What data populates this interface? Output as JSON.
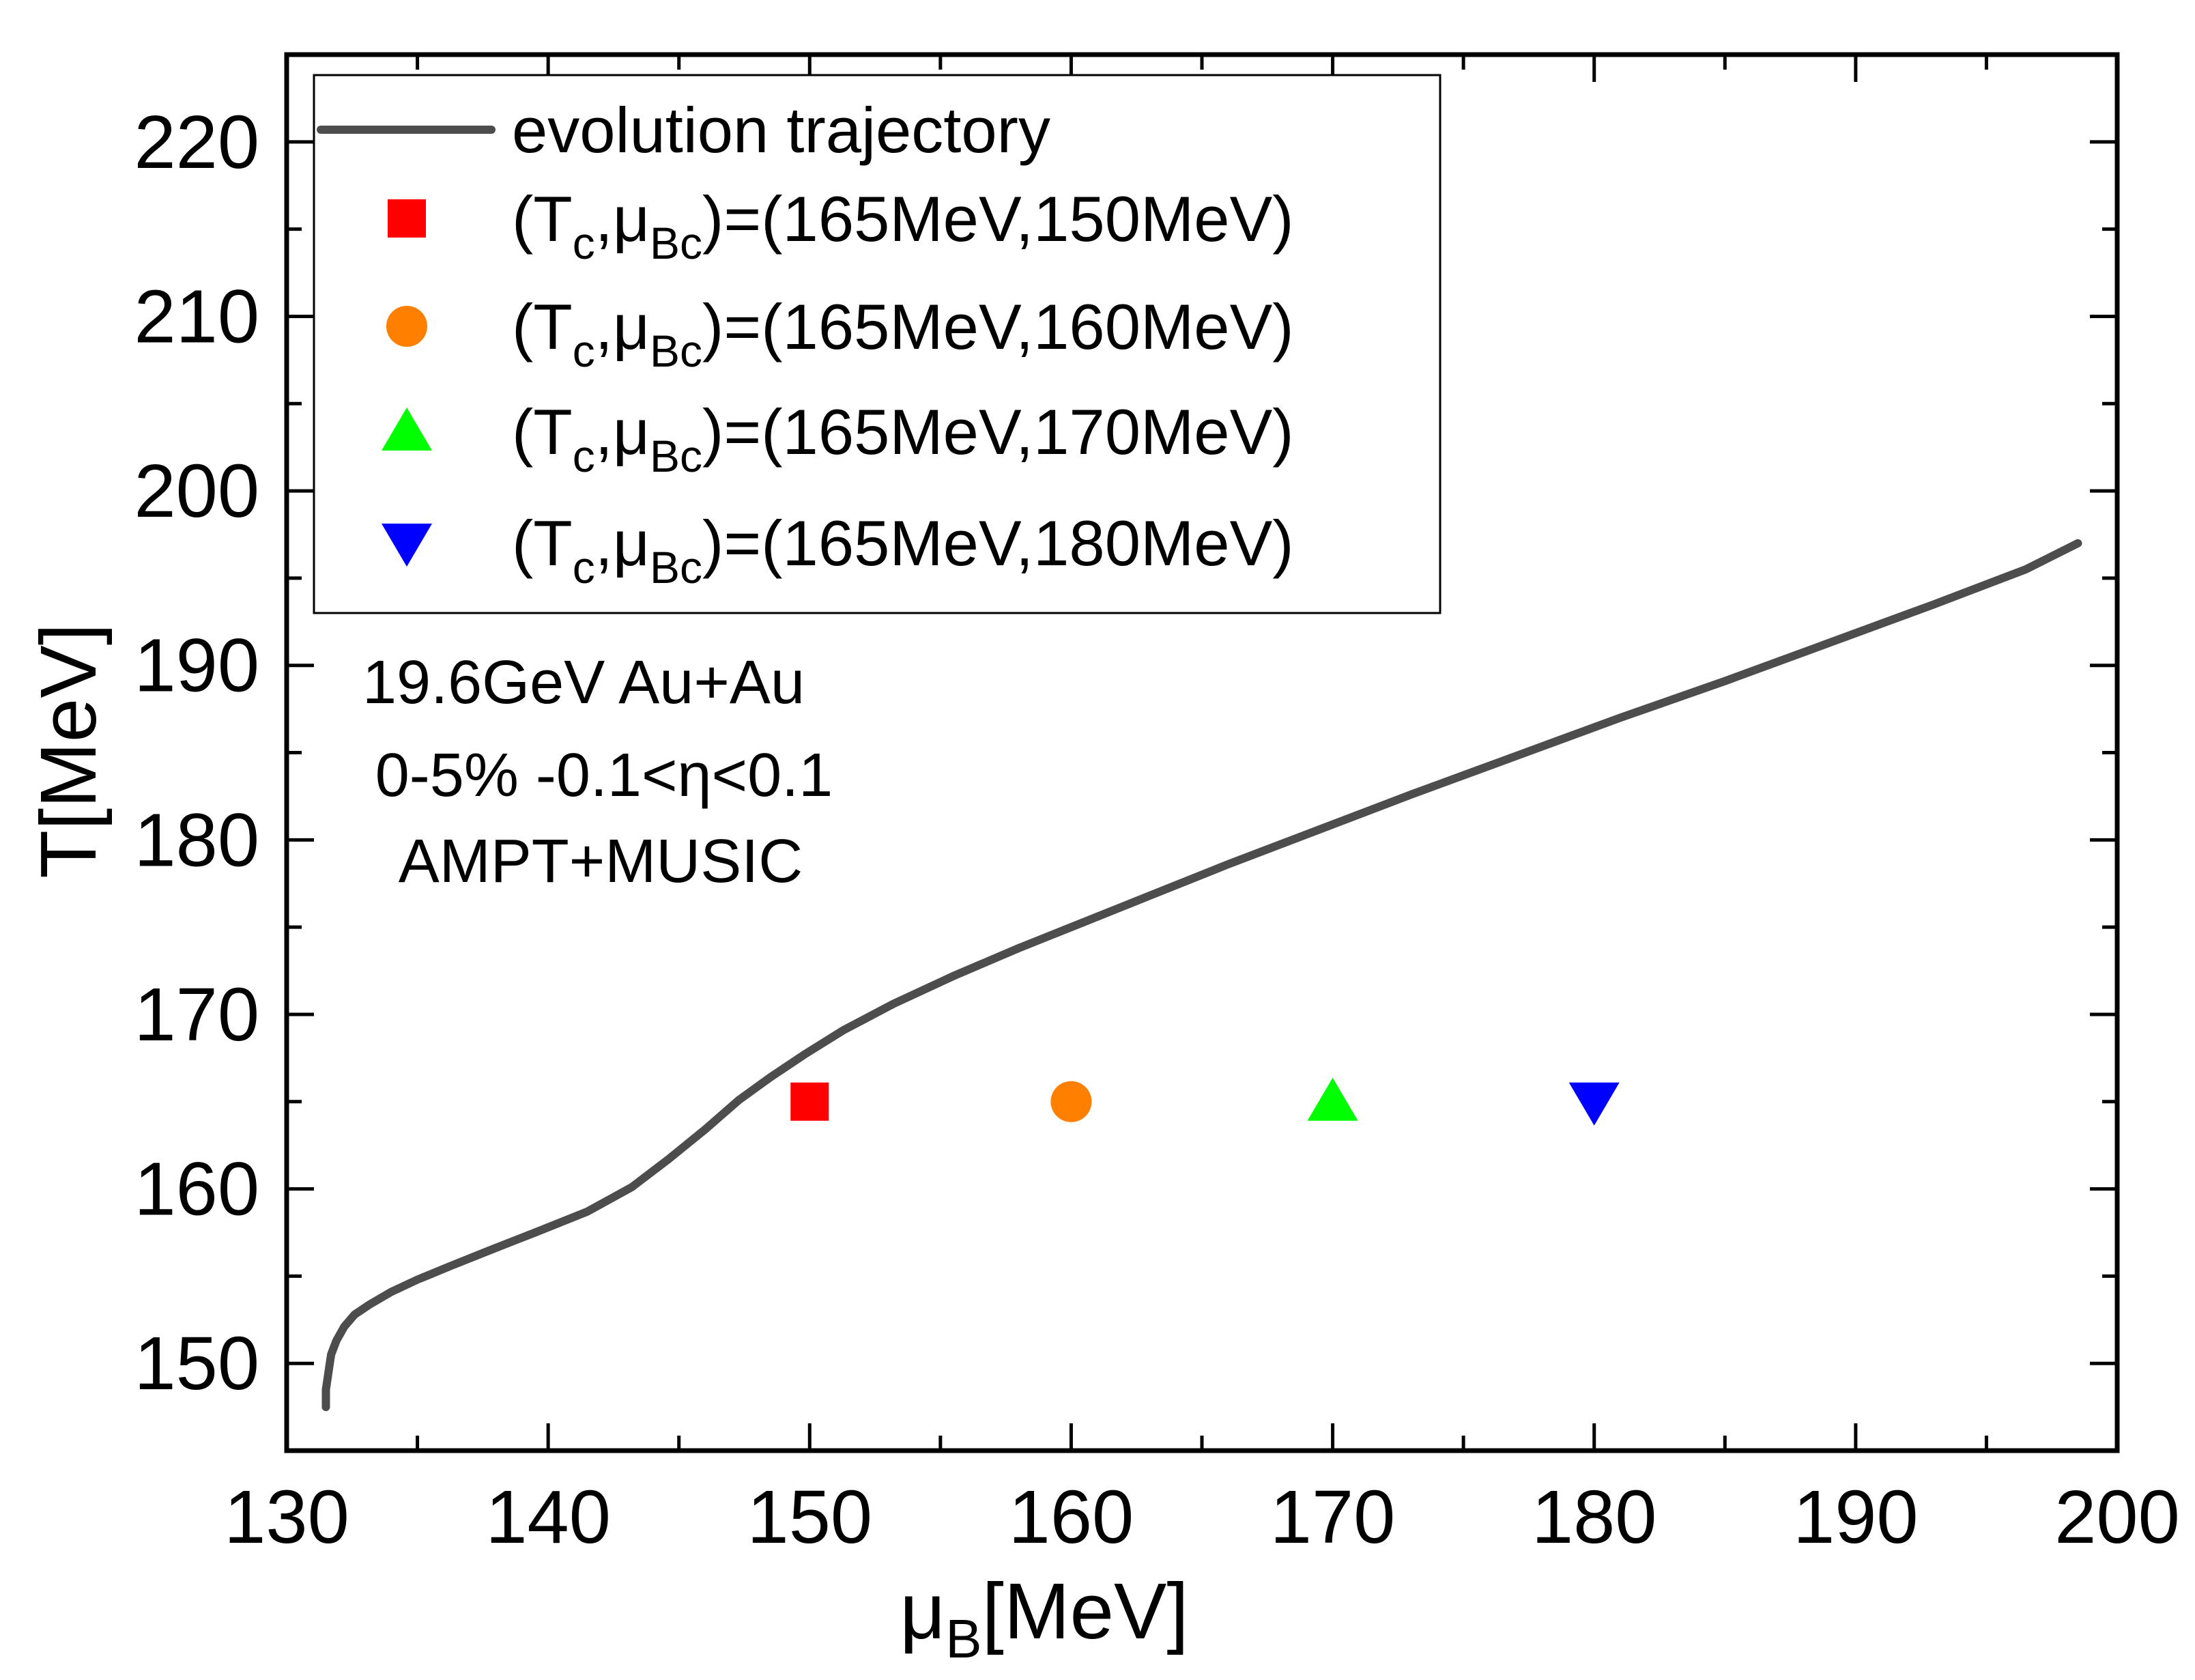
{
  "chart_data": {
    "type": "line",
    "title": "",
    "xlabel_main": "μ",
    "xlabel_sub": "B",
    "xlabel_unit": "[MeV]",
    "ylabel": "T[MeV]",
    "xlim": [
      130,
      200
    ],
    "ylim": [
      145,
      225
    ],
    "x_major_ticks": [
      130,
      140,
      150,
      160,
      170,
      180,
      190,
      200
    ],
    "x_tick_labels": [
      "130",
      "140",
      "150",
      "160",
      "170",
      "180",
      "190",
      "200"
    ],
    "x_minor_ticks": [
      135,
      145,
      155,
      165,
      175,
      185,
      195
    ],
    "y_major_ticks": [
      150,
      160,
      170,
      180,
      190,
      200,
      210,
      220
    ],
    "y_tick_labels": [
      "150",
      "160",
      "170",
      "180",
      "190",
      "200",
      "210",
      "220"
    ],
    "y_minor_ticks": [
      155,
      165,
      175,
      185,
      195,
      205,
      215
    ],
    "grid": false,
    "legend_position": "top-left",
    "series": [
      {
        "name": "evolution trajectory",
        "kind": "line",
        "color": "#4d4d4d",
        "x": [
          131.5,
          131.5,
          131.6,
          131.7,
          131.9,
          132.2,
          132.6,
          133.2,
          134.0,
          135.0,
          136.3,
          137.8,
          139.5,
          141.5,
          143.2,
          144.6,
          146.0,
          147.3,
          148.5,
          149.8,
          151.3,
          153.2,
          155.5,
          158.0,
          160.5,
          163.0,
          166.0,
          169.5,
          173.0,
          177.0,
          181.0,
          185.0,
          189.0,
          193.0,
          196.5,
          198.5
        ],
        "y": [
          147.5,
          148.5,
          149.5,
          150.5,
          151.3,
          152.1,
          152.8,
          153.4,
          154.1,
          154.8,
          155.6,
          156.5,
          157.5,
          158.7,
          160.1,
          161.7,
          163.4,
          165.1,
          166.4,
          167.7,
          169.1,
          170.6,
          172.2,
          173.8,
          175.3,
          176.8,
          178.6,
          180.6,
          182.6,
          184.8,
          187.0,
          189.1,
          191.3,
          193.5,
          195.5,
          197.0
        ]
      },
      {
        "name": "(Tc,μBc)=(165MeV,150MeV)",
        "kind": "marker",
        "marker": "square",
        "color": "#ff0000",
        "x": [
          150
        ],
        "y": [
          165
        ]
      },
      {
        "name": "(Tc,μBc)=(165MeV,160MeV)",
        "kind": "marker",
        "marker": "circle",
        "color": "#ff8000",
        "x": [
          160
        ],
        "y": [
          165
        ]
      },
      {
        "name": "(Tc,μBc)=(165MeV,170MeV)",
        "kind": "marker",
        "marker": "triangle-up",
        "color": "#00ff00",
        "x": [
          170
        ],
        "y": [
          165
        ]
      },
      {
        "name": "(Tc,μBc)=(165MeV,180MeV)",
        "kind": "marker",
        "marker": "triangle-down",
        "color": "#0000ff",
        "x": [
          180
        ],
        "y": [
          165
        ]
      }
    ],
    "legend": [
      {
        "kind": "line",
        "color": "#4d4d4d",
        "text": "evolution trajectory"
      },
      {
        "kind": "marker",
        "marker": "square",
        "color": "#ff0000",
        "pre": "(T",
        "sub1": "c",
        "mid": ",μ",
        "sub2": "Bc",
        "post": ")=(165MeV,150MeV)"
      },
      {
        "kind": "marker",
        "marker": "circle",
        "color": "#ff8000",
        "pre": "(T",
        "sub1": "c",
        "mid": ",μ",
        "sub2": "Bc",
        "post": ")=(165MeV,160MeV)"
      },
      {
        "kind": "marker",
        "marker": "triangle-up",
        "color": "#00ff00",
        "pre": "(T",
        "sub1": "c",
        "mid": ",μ",
        "sub2": "Bc",
        "post": ")=(165MeV,170MeV)"
      },
      {
        "kind": "marker",
        "marker": "triangle-down",
        "color": "#0000ff",
        "pre": "(T",
        "sub1": "c",
        "mid": ",μ",
        "sub2": "Bc",
        "post": ")=(165MeV,180MeV)"
      }
    ],
    "annotations": [
      "19.6GeV Au+Au",
      "0-5% -0.1<η<0.1",
      "AMPT+MUSIC"
    ]
  }
}
